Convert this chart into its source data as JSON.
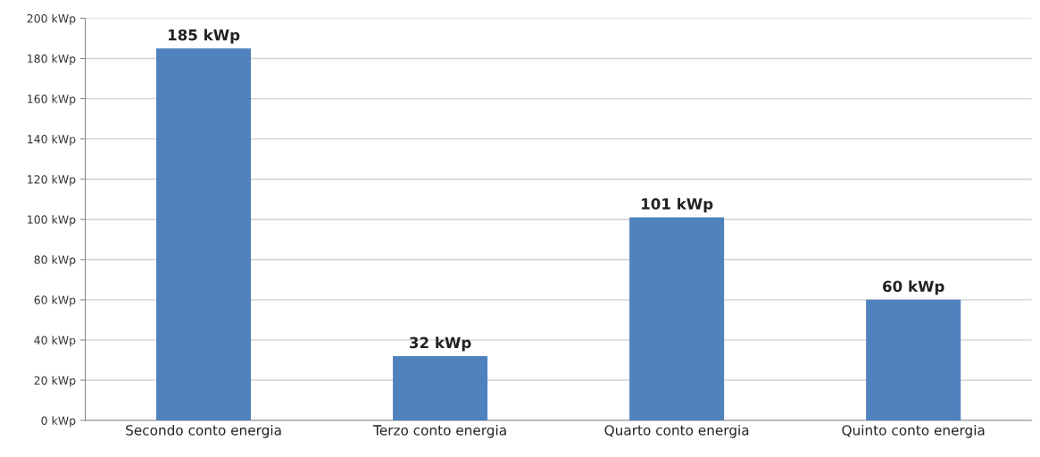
{
  "chart_data": {
    "type": "bar",
    "categories": [
      "Secondo conto energia",
      "Terzo conto energia",
      "Quarto conto energia",
      "Quinto conto energia"
    ],
    "values": [
      185,
      32,
      101,
      60
    ],
    "value_labels": [
      "185 kWp",
      "32 kWp",
      "101 kWp",
      "60 kWp"
    ],
    "color": "#4f81bd",
    "ylim": [
      0,
      200
    ],
    "yticks": [
      {
        "value": 0,
        "label": "0 kWp"
      },
      {
        "value": 20,
        "label": "20 kWp"
      },
      {
        "value": 40,
        "label": "40 kWp"
      },
      {
        "value": 60,
        "label": "60 kWp"
      },
      {
        "value": 80,
        "label": "80 kWp"
      },
      {
        "value": 100,
        "label": "100 kWp"
      },
      {
        "value": 120,
        "label": "120 kWp"
      },
      {
        "value": 140,
        "label": "140 kWp"
      },
      {
        "value": 160,
        "label": "160 kWp"
      },
      {
        "value": 180,
        "label": "180 kWp"
      },
      {
        "value": 200,
        "label": "200 kWp"
      }
    ],
    "grid": "y",
    "legend": false
  }
}
